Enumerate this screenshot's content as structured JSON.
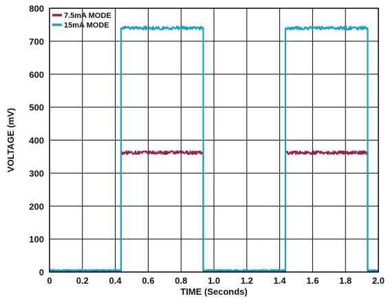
{
  "chart_data": {
    "type": "line",
    "title": "",
    "xlabel": "TIME (Seconds)",
    "ylabel": "VOLTAGE (mV)",
    "xlim": [
      0,
      2.0
    ],
    "ylim": [
      0,
      800
    ],
    "grid": true,
    "legend_position": "top-left",
    "x_ticks": [
      0,
      0.2,
      0.4,
      0.6,
      0.8,
      1.0,
      1.2,
      1.4,
      1.6,
      1.8,
      2.0
    ],
    "x_tick_labels": [
      "0",
      "0.2",
      "0.4",
      "0.6",
      "0.8",
      "1.0",
      "1.2",
      "1.4",
      "1.6",
      "1.8",
      "2.0"
    ],
    "y_ticks": [
      0,
      100,
      200,
      300,
      400,
      500,
      600,
      700,
      800
    ],
    "y_tick_labels": [
      "0",
      "100",
      "200",
      "300",
      "400",
      "500",
      "600",
      "700",
      "800"
    ],
    "series": [
      {
        "name": "7.5mA MODE",
        "color": "#9b1e47",
        "x": [
          0,
          0.435,
          0.435,
          0.935,
          0.935,
          1.435,
          1.435,
          1.935,
          1.935,
          2.0
        ],
        "y": [
          3,
          3,
          362,
          362,
          3,
          3,
          362,
          362,
          3,
          3
        ]
      },
      {
        "name": "15mA MODE",
        "color": "#1aa0cf",
        "x": [
          0,
          0.435,
          0.435,
          0.935,
          0.935,
          1.435,
          1.435,
          1.935,
          1.935,
          2.0
        ],
        "y": [
          5,
          5,
          740,
          740,
          5,
          5,
          740,
          740,
          5,
          8
        ]
      }
    ]
  }
}
